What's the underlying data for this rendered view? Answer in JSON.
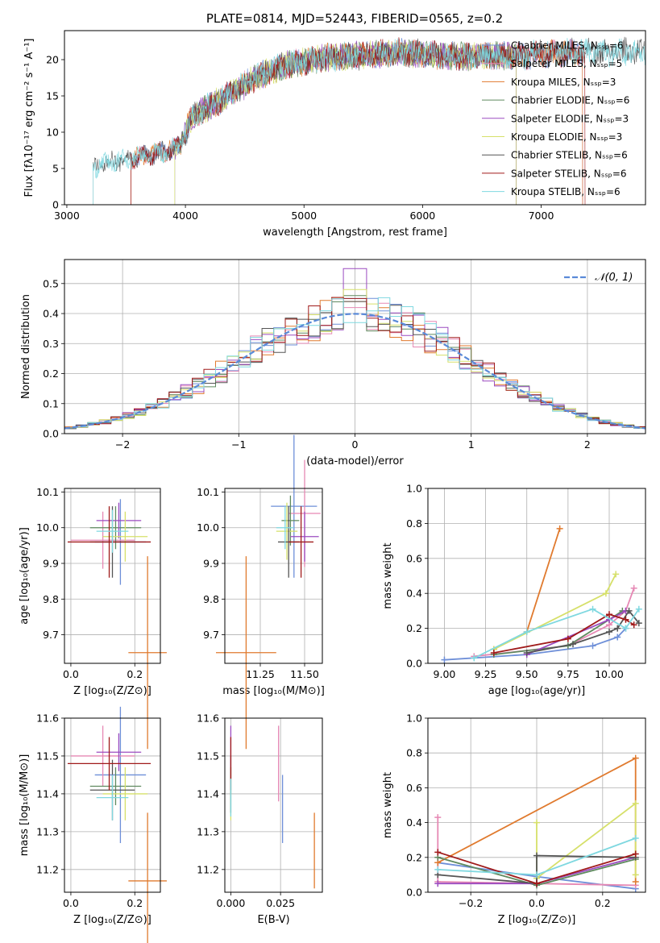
{
  "colors": {
    "chabrier_miles": "#6e8fd8",
    "salpeter_miles": "#e688b4",
    "kroupa_miles": "#e07a2e",
    "chabrier_elodie": "#5f8a5f",
    "salpeter_elodie": "#9b4bc0",
    "kroupa_elodie": "#d6e06a",
    "chabrier_stelib": "#555555",
    "salpeter_stelib": "#a01a1a",
    "kroupa_stelib": "#7fd8e0",
    "normal": "#5a8ad8",
    "grid": "#b0b0b0"
  },
  "chart_data": [
    {
      "id": "spectrum",
      "type": "line",
      "title": "PLATE=0814, MJD=52443, FIBERID=0565, z=0.2",
      "xlabel": "wavelength [Angstrom, rest frame]",
      "ylabel": "Flux [fλ10⁻¹⁷ erg cm⁻² s⁻¹ A⁻¹]",
      "xlim": [
        2980,
        7880
      ],
      "ylim": [
        0,
        24
      ],
      "xticks": [
        3000,
        4000,
        5000,
        6000,
        7000
      ],
      "yticks": [
        0,
        5,
        10,
        15,
        20
      ],
      "grid": false,
      "legend_position": "right",
      "series": [
        {
          "name": "Chabrier MILES, N_SSP=6",
          "range": [
            3540,
            7350
          ]
        },
        {
          "name": "Salpeter MILES, N_SSP=5",
          "range": [
            3540,
            7350
          ]
        },
        {
          "name": "Kroupa MILES, N_SSP=3",
          "range": [
            3540,
            7350
          ]
        },
        {
          "name": "Chabrier ELODIE, N_SSP=6",
          "range": [
            3910,
            6790
          ]
        },
        {
          "name": "Salpeter ELODIE, N_SSP=3",
          "range": [
            3910,
            6790
          ]
        },
        {
          "name": "Kroupa ELODIE, N_SSP=3",
          "range": [
            3910,
            6790
          ]
        },
        {
          "name": "Chabrier STELIB, N_SSP=6",
          "range": [
            3220,
            7880
          ]
        },
        {
          "name": "Salpeter STELIB, N_SSP=6",
          "range": [
            3540,
            7370
          ]
        },
        {
          "name": "Kroupa STELIB, N_SSP=6",
          "range": [
            3220,
            7880
          ]
        }
      ],
      "envelope": {
        "x": [
          3220,
          3400,
          3600,
          3800,
          3950,
          4050,
          4200,
          4400,
          4600,
          4800,
          5000,
          5200,
          5400,
          5600,
          5800,
          6000,
          6200,
          6400,
          6600,
          6800,
          7000,
          7200,
          7400,
          7600,
          7880
        ],
        "y": [
          5.2,
          6.0,
          6.5,
          7.2,
          8.0,
          12.0,
          13.5,
          15.5,
          17.5,
          19.0,
          19.8,
          20.3,
          20.5,
          20.7,
          21.0,
          20.8,
          20.5,
          20.4,
          20.6,
          20.5,
          20.8,
          21.0,
          21.2,
          21.0,
          21.2
        ]
      }
    },
    {
      "id": "residuals",
      "type": "histogram",
      "xlabel": "(data-model)/error",
      "ylabel": "Normed distribution",
      "xlim": [
        -2.5,
        2.5
      ],
      "ylim": [
        0,
        0.58
      ],
      "xticks": [
        -2,
        -1,
        0,
        1,
        2
      ],
      "yticks": [
        0.0,
        0.1,
        0.2,
        0.3,
        0.4,
        0.5
      ],
      "grid": true,
      "legend": "N(0,1)",
      "legend_position": "top-right",
      "bin_width": 0.1,
      "bins_from": -2.5,
      "peak_values_at_zero": [
        0.45,
        0.42,
        0.44,
        0.46,
        0.55,
        0.48,
        0.44,
        0.45,
        0.37
      ]
    },
    {
      "id": "age_vs_Z",
      "type": "errorbar",
      "xlabel": "Z [log₁₀(Z/Z⊙)]",
      "ylabel": "age  [log₁₀(age/yr)]",
      "xlim": [
        -0.02,
        0.28
      ],
      "ylim": [
        9.62,
        10.11
      ],
      "xticks": [
        0.0,
        0.2
      ],
      "yticks": [
        9.7,
        9.8,
        9.9,
        10.0,
        10.1
      ],
      "grid": true,
      "points": [
        {
          "series": "Chabrier MILES",
          "x": 0.155,
          "y": 9.96,
          "xerr": 0.08,
          "yerr": 0.12
        },
        {
          "series": "Salpeter MILES",
          "x": 0.1,
          "y": 9.965,
          "xerr": 0.1,
          "yerr": 0.08
        },
        {
          "series": "Kroupa MILES",
          "x": 0.24,
          "y": 9.65,
          "xerr": 0.06,
          "yerr": 0.27
        },
        {
          "series": "Chabrier ELODIE",
          "x": 0.14,
          "y": 10.0,
          "xerr": 0.08,
          "yerr": 0.06
        },
        {
          "series": "Salpeter ELODIE",
          "x": 0.15,
          "y": 10.02,
          "xerr": 0.07,
          "yerr": 0.05
        },
        {
          "series": "Kroupa ELODIE",
          "x": 0.17,
          "y": 9.975,
          "xerr": 0.07,
          "yerr": 0.07
        },
        {
          "series": "Chabrier STELIB",
          "x": 0.13,
          "y": 9.96,
          "xerr": 0.07,
          "yerr": 0.1
        },
        {
          "series": "Salpeter STELIB",
          "x": 0.12,
          "y": 9.96,
          "xerr": 0.13,
          "yerr": 0.1
        },
        {
          "series": "Kroupa STELIB",
          "x": 0.13,
          "y": 9.99,
          "xerr": 0.05,
          "yerr": 0.06
        }
      ]
    },
    {
      "id": "age_vs_mass",
      "type": "errorbar",
      "xlabel": "mass [log₁₀(M/M⊙)]",
      "ylabel": "",
      "xlim": [
        11.05,
        11.6
      ],
      "ylim": [
        9.62,
        10.11
      ],
      "xticks": [
        11.25,
        11.5
      ],
      "yticks": [
        9.7,
        9.8,
        9.9,
        10.0,
        10.1
      ],
      "grid": true,
      "points": [
        {
          "series": "Chabrier MILES",
          "x": 11.44,
          "y": 10.06,
          "xerr": 0.13,
          "yerr": 0.2
        },
        {
          "series": "Salpeter MILES",
          "x": 11.5,
          "y": 10.04,
          "xerr": 0.09,
          "yerr": 0.15
        },
        {
          "series": "Kroupa MILES",
          "x": 11.17,
          "y": 9.65,
          "xerr": 0.17,
          "yerr": 0.27
        },
        {
          "series": "Chabrier ELODIE",
          "x": 11.42,
          "y": 10.02,
          "xerr": 0.05,
          "yerr": 0.07
        },
        {
          "series": "Salpeter ELODIE",
          "x": 11.5,
          "y": 9.975,
          "xerr": 0.08,
          "yerr": 0.07
        },
        {
          "series": "Kroupa ELODIE",
          "x": 11.4,
          "y": 9.99,
          "xerr": 0.06,
          "yerr": 0.08
        },
        {
          "series": "Chabrier STELIB",
          "x": 11.41,
          "y": 9.96,
          "xerr": 0.06,
          "yerr": 0.1
        },
        {
          "series": "Salpeter STELIB",
          "x": 11.48,
          "y": 9.96,
          "xerr": 0.07,
          "yerr": 0.1
        },
        {
          "series": "Kroupa STELIB",
          "x": 11.39,
          "y": 10.0,
          "xerr": 0.05,
          "yerr": 0.06
        }
      ]
    },
    {
      "id": "weight_vs_age",
      "type": "line",
      "xlabel": "age  [log₁₀(age/yr)]",
      "ylabel": "mass weight",
      "xlim": [
        8.9,
        10.22
      ],
      "ylim": [
        0,
        1.0
      ],
      "xticks": [
        9.0,
        9.25,
        9.5,
        9.75,
        10.0
      ],
      "yticks": [
        0.0,
        0.2,
        0.4,
        0.6,
        0.8,
        1.0
      ],
      "grid": true,
      "series": [
        {
          "name": "Chabrier MILES",
          "x": [
            9.0,
            9.5,
            9.9,
            10.05,
            10.1
          ],
          "y": [
            0.02,
            0.05,
            0.1,
            0.15,
            0.2
          ]
        },
        {
          "name": "Salpeter MILES",
          "x": [
            9.18,
            9.75,
            10.0,
            10.1,
            10.15
          ],
          "y": [
            0.04,
            0.1,
            0.22,
            0.3,
            0.43
          ]
        },
        {
          "name": "Kroupa MILES",
          "x": [
            9.3,
            9.5,
            9.7
          ],
          "y": [
            0.08,
            0.18,
            0.77
          ]
        },
        {
          "name": "Chabrier ELODIE",
          "x": [
            9.3,
            9.75,
            10.0,
            10.08
          ],
          "y": [
            0.05,
            0.1,
            0.25,
            0.3
          ]
        },
        {
          "name": "Salpeter ELODIE",
          "x": [
            9.5,
            10.0,
            10.1
          ],
          "y": [
            0.05,
            0.25,
            0.3
          ]
        },
        {
          "name": "Kroupa ELODIE",
          "x": [
            9.3,
            9.98,
            10.04
          ],
          "y": [
            0.08,
            0.4,
            0.51
          ]
        },
        {
          "name": "Chabrier STELIB",
          "x": [
            9.5,
            9.78,
            10.0,
            10.05,
            10.12,
            10.18
          ],
          "y": [
            0.06,
            0.11,
            0.18,
            0.2,
            0.3,
            0.23
          ]
        },
        {
          "name": "Salpeter STELIB",
          "x": [
            9.3,
            9.75,
            10.0,
            10.1,
            10.15
          ],
          "y": [
            0.06,
            0.14,
            0.28,
            0.25,
            0.22
          ]
        },
        {
          "name": "Kroupa STELIB",
          "x": [
            9.18,
            9.5,
            9.9,
            10.1,
            10.18
          ],
          "y": [
            0.03,
            0.18,
            0.31,
            0.2,
            0.31
          ]
        }
      ]
    },
    {
      "id": "mass_vs_Z",
      "type": "errorbar",
      "xlabel": "Z [log₁₀(Z/Z⊙)]",
      "ylabel": "mass [log₁₀(M/M⊙)]",
      "xlim": [
        -0.02,
        0.28
      ],
      "ylim": [
        11.14,
        11.6
      ],
      "xticks": [
        0.0,
        0.2
      ],
      "yticks": [
        11.2,
        11.3,
        11.4,
        11.5,
        11.6
      ],
      "grid": true,
      "points": [
        {
          "series": "Chabrier MILES",
          "x": 0.155,
          "y": 11.45,
          "xerr": 0.08,
          "yerr": 0.18
        },
        {
          "series": "Salpeter MILES",
          "x": 0.1,
          "y": 11.5,
          "xerr": 0.1,
          "yerr": 0.08
        },
        {
          "series": "Kroupa MILES",
          "x": 0.24,
          "y": 11.17,
          "xerr": 0.06,
          "yerr": 0.18
        },
        {
          "series": "Chabrier ELODIE",
          "x": 0.14,
          "y": 11.42,
          "xerr": 0.08,
          "yerr": 0.05
        },
        {
          "series": "Salpeter ELODIE",
          "x": 0.15,
          "y": 11.51,
          "xerr": 0.07,
          "yerr": 0.05
        },
        {
          "series": "Kroupa ELODIE",
          "x": 0.17,
          "y": 11.4,
          "xerr": 0.07,
          "yerr": 0.07
        },
        {
          "series": "Chabrier STELIB",
          "x": 0.13,
          "y": 11.41,
          "xerr": 0.07,
          "yerr": 0.08
        },
        {
          "series": "Salpeter STELIB",
          "x": 0.12,
          "y": 11.48,
          "xerr": 0.13,
          "yerr": 0.07
        },
        {
          "series": "Kroupa STELIB",
          "x": 0.13,
          "y": 11.39,
          "xerr": 0.05,
          "yerr": 0.06
        }
      ]
    },
    {
      "id": "mass_vs_ebv",
      "type": "errorbar",
      "xlabel": "E(B-V)",
      "ylabel": "",
      "xlim": [
        -0.003,
        0.046
      ],
      "ylim": [
        11.14,
        11.6
      ],
      "xticks": [
        0.0,
        0.025
      ],
      "yticks": [
        11.2,
        11.3,
        11.4,
        11.5,
        11.6
      ],
      "grid": true,
      "points": [
        {
          "series": "Chabrier MILES",
          "x": 0.026,
          "y": 11.36,
          "xerr": 0,
          "yerr": 0.09
        },
        {
          "series": "Salpeter MILES",
          "x": 0.024,
          "y": 11.48,
          "xerr": 0,
          "yerr": 0.1
        },
        {
          "series": "Kroupa MILES",
          "x": 0.042,
          "y": 11.25,
          "xerr": 0,
          "yerr": 0.1
        },
        {
          "series": "Chabrier ELODIE",
          "x": 0.0,
          "y": 11.45,
          "xerr": 0,
          "yerr": 0.05
        },
        {
          "series": "Salpeter ELODIE",
          "x": 0.0,
          "y": 11.51,
          "xerr": 0,
          "yerr": 0.07
        },
        {
          "series": "Kroupa ELODIE",
          "x": 0.0,
          "y": 11.4,
          "xerr": 0,
          "yerr": 0.07
        },
        {
          "series": "Chabrier STELIB",
          "x": 0.0,
          "y": 11.41,
          "xerr": 0,
          "yerr": 0.06
        },
        {
          "series": "Salpeter STELIB",
          "x": 0.0,
          "y": 11.48,
          "xerr": 0,
          "yerr": 0.07
        },
        {
          "series": "Kroupa STELIB",
          "x": 0.0,
          "y": 11.39,
          "xerr": 0,
          "yerr": 0.05
        }
      ]
    },
    {
      "id": "weight_vs_Z",
      "type": "line",
      "xlabel": "Z [log₁₀(Z/Z⊙)]",
      "ylabel": "mass weight",
      "xlim": [
        -0.33,
        0.33
      ],
      "ylim": [
        0,
        1.0
      ],
      "xticks": [
        -0.2,
        0.0,
        0.2
      ],
      "yticks": [
        0.0,
        0.2,
        0.4,
        0.6,
        0.8,
        1.0
      ],
      "grid": true,
      "series": [
        {
          "name": "Chabrier MILES",
          "x": [
            -0.3,
            0.0,
            0.3
          ],
          "y": [
            0.17,
            0.09,
            0.02
          ]
        },
        {
          "name": "Salpeter MILES",
          "x": [
            -0.3,
            -0.3,
            0.0,
            0.3
          ],
          "y": [
            0.43,
            0.06,
            0.05,
            0.04
          ]
        },
        {
          "name": "Kroupa MILES",
          "x": [
            -0.3,
            0.3,
            0.3
          ],
          "y": [
            0.17,
            0.77,
            0.06
          ]
        },
        {
          "name": "Chabrier ELODIE",
          "x": [
            -0.3,
            0.0,
            0.3
          ],
          "y": [
            0.2,
            0.04,
            0.19
          ]
        },
        {
          "name": "Salpeter ELODIE",
          "x": [
            -0.3,
            0.0,
            0.3
          ],
          "y": [
            0.05,
            0.05,
            0.2
          ]
        },
        {
          "name": "Kroupa ELODIE",
          "x": [
            0.0,
            0.0,
            0.3,
            0.3
          ],
          "y": [
            0.4,
            0.08,
            0.51,
            0.1
          ]
        },
        {
          "name": "Chabrier STELIB",
          "x": [
            -0.3,
            0.0,
            0.0,
            0.3
          ],
          "y": [
            0.1,
            0.05,
            0.21,
            0.2
          ]
        },
        {
          "name": "Salpeter STELIB",
          "x": [
            -0.3,
            0.0,
            0.3
          ],
          "y": [
            0.23,
            0.05,
            0.22
          ]
        },
        {
          "name": "Kroupa STELIB",
          "x": [
            -0.3,
            0.0,
            0.3
          ],
          "y": [
            0.13,
            0.1,
            0.31
          ]
        }
      ]
    }
  ]
}
